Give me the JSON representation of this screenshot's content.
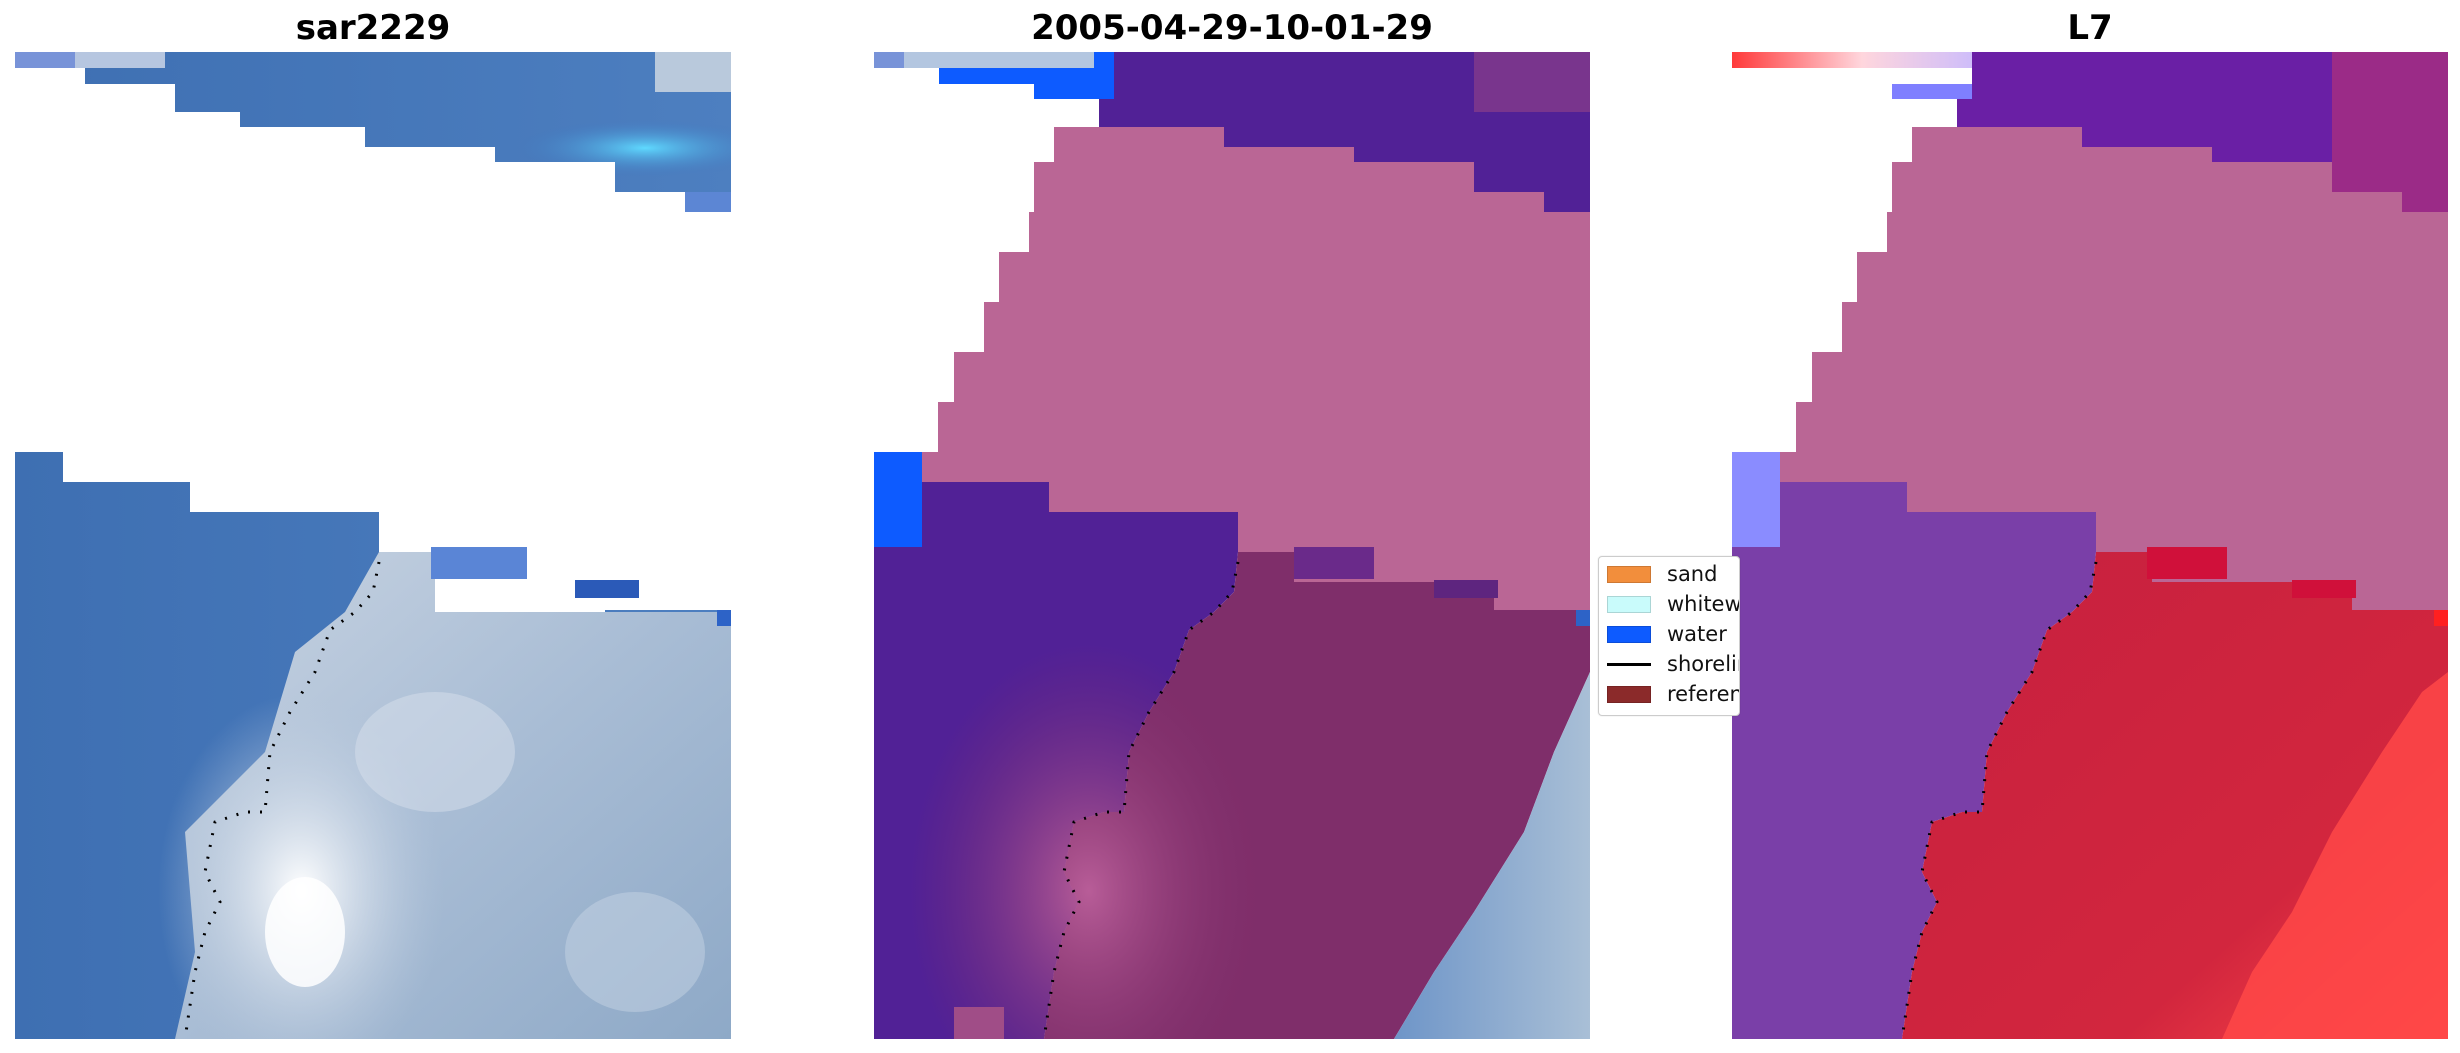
{
  "panels": [
    {
      "title": "sar2229"
    },
    {
      "title": "2005-04-29-10-01-29"
    },
    {
      "title": "L7"
    }
  ],
  "legend": {
    "items": [
      {
        "label": "sand",
        "kind": "swatch",
        "color": "#f28e3c"
      },
      {
        "label": "whitewater",
        "kind": "swatch",
        "color": "#c9fbfb"
      },
      {
        "label": "water",
        "kind": "swatch",
        "color": "#0d5bff"
      },
      {
        "label": "shoreline",
        "kind": "line",
        "color": "#000000"
      },
      {
        "label": "reference",
        "kind": "swatch",
        "color": "#8b2a2a"
      }
    ]
  },
  "colors": {
    "sea_blue": "#3b71b5",
    "cloud_gray": "#a9bdd4",
    "class_water_blue": "#0d5bff",
    "class_land_purple": "#512196",
    "class_sand_pink": "#ba6695",
    "reference_dark_red": "#7f2e6a",
    "l7_purple": "#7a3fa8",
    "l7_red": "#c6203f",
    "l7_light_red": "#ff4848"
  }
}
